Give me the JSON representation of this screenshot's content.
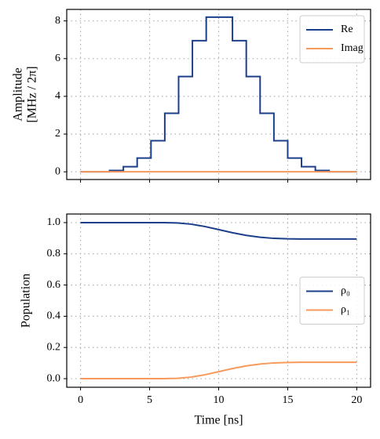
{
  "chart_data": [
    {
      "type": "line",
      "ylabel": [
        "Amplitude",
        "[MHz / 2π]"
      ],
      "xlim": [
        -1,
        21
      ],
      "xticks": [
        0,
        5,
        10,
        15,
        20
      ],
      "show_xticklabels": false,
      "ylim": [
        -0.41,
        8.61
      ],
      "yticks": [
        0,
        2,
        4,
        6,
        8
      ],
      "grid": true,
      "legend": "upper right",
      "series": [
        {
          "name": "Re",
          "color": "#1c3f8a",
          "drawstyle": "steps-post",
          "x": [
            0,
            2.1,
            3.1,
            4.1,
            5.1,
            6.1,
            7.1,
            8.1,
            9.1,
            11.0,
            12.0,
            13.0,
            14.0,
            15.0,
            16.0,
            17.0,
            18.0,
            20
          ],
          "values": [
            0,
            0.07,
            0.27,
            0.73,
            1.65,
            3.1,
            5.05,
            6.95,
            8.2,
            6.95,
            5.05,
            3.1,
            1.65,
            0.73,
            0.27,
            0.07,
            0,
            0
          ]
        },
        {
          "name": "Imag",
          "color": "#f79a5c",
          "x": [
            0,
            20
          ],
          "values": [
            0,
            0
          ]
        }
      ]
    },
    {
      "type": "line",
      "ylabel": [
        "Population"
      ],
      "xlabel": "Time [ns]",
      "xlim": [
        -1,
        21
      ],
      "xticks": [
        0,
        5,
        10,
        15,
        20
      ],
      "show_xticklabels": true,
      "ylim": [
        -0.055,
        1.055
      ],
      "yticks": [
        {
          "value": 0,
          "label": "0.0"
        },
        {
          "value": 0.2,
          "label": "0.2"
        },
        {
          "value": 0.4,
          "label": "0.4"
        },
        {
          "value": 0.6,
          "label": "0.6"
        },
        {
          "value": 0.8,
          "label": "0.8"
        },
        {
          "value": 1,
          "label": "1.0"
        }
      ],
      "grid": true,
      "legend": "center right",
      "series": [
        {
          "name": "ρ₀",
          "color": "#1c3f8a",
          "x": [
            0,
            6,
            7,
            8,
            9,
            10,
            11,
            12,
            13,
            14,
            15,
            16,
            20
          ],
          "values": [
            1.0,
            1.0,
            0.998,
            0.99,
            0.975,
            0.955,
            0.935,
            0.918,
            0.906,
            0.899,
            0.896,
            0.895,
            0.895
          ]
        },
        {
          "name": "ρ₁",
          "color": "#f79a5c",
          "x": [
            0,
            6,
            7,
            8,
            9,
            10,
            11,
            12,
            13,
            14,
            15,
            16,
            20
          ],
          "values": [
            0.0,
            0.0,
            0.002,
            0.01,
            0.025,
            0.045,
            0.065,
            0.082,
            0.094,
            0.101,
            0.104,
            0.105,
            0.105
          ]
        }
      ]
    }
  ]
}
